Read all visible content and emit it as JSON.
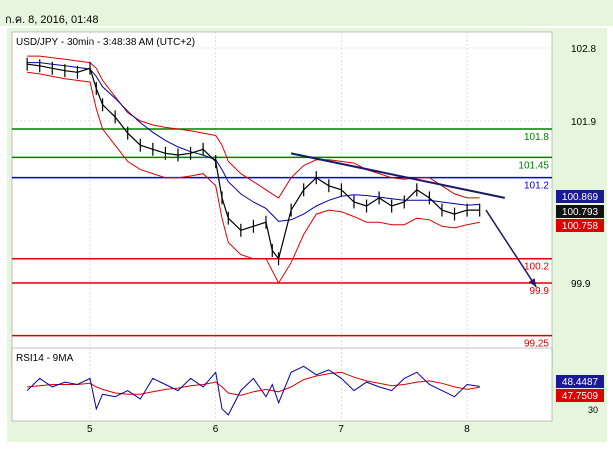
{
  "header": {
    "date_text": "ก.ค. 8, 2016, 01:48"
  },
  "chart_data": [
    {
      "type": "line",
      "title": "USD/JPY - 30min - 3:48:38 AM (UTC+2)",
      "instrument": "USD/JPY",
      "timeframe": "30min",
      "x_tick_labels": [
        "5",
        "6",
        "7",
        "8"
      ],
      "y_tick_labels": [
        "102.8",
        "101.9",
        "99.9"
      ],
      "ylim": [
        99.0,
        103.0
      ],
      "price_series": {
        "name": "",
        "x_day": [
          4.5,
          4.6,
          4.7,
          4.8,
          4.9,
          5.0,
          5.05,
          5.1,
          5.2,
          5.3,
          5.4,
          5.5,
          5.6,
          5.7,
          5.8,
          5.9,
          6.0,
          6.05,
          6.1,
          6.2,
          6.3,
          6.4,
          6.45,
          6.5,
          6.6,
          6.7,
          6.8,
          6.9,
          7.0,
          7.1,
          7.2,
          7.3,
          7.4,
          7.5,
          7.6,
          7.7,
          7.8,
          7.9,
          8.0,
          8.1
        ],
        "y": [
          102.6,
          102.58,
          102.55,
          102.52,
          102.5,
          102.55,
          102.3,
          102.1,
          101.95,
          101.75,
          101.6,
          101.55,
          101.5,
          101.48,
          101.5,
          101.55,
          101.4,
          100.95,
          100.7,
          100.55,
          100.6,
          100.65,
          100.3,
          100.2,
          100.8,
          101.05,
          101.2,
          101.1,
          101.05,
          100.9,
          100.85,
          100.95,
          100.85,
          100.9,
          101.05,
          100.95,
          100.8,
          100.75,
          100.8,
          100.8
        ]
      },
      "bollinger_upper": [
        102.7,
        102.7,
        102.68,
        102.66,
        102.64,
        102.62,
        102.55,
        102.4,
        102.2,
        102.0,
        101.9,
        101.85,
        101.82,
        101.8,
        101.78,
        101.75,
        101.72,
        101.6,
        101.4,
        101.25,
        101.15,
        101.05,
        101.0,
        100.95,
        101.2,
        101.35,
        101.42,
        101.42,
        101.4,
        101.38,
        101.3,
        101.25,
        101.2,
        101.18,
        101.2,
        101.2,
        101.1,
        101.0,
        100.95,
        100.95
      ],
      "bollinger_lower": [
        102.5,
        102.48,
        102.45,
        102.42,
        102.4,
        102.38,
        102.05,
        101.8,
        101.6,
        101.4,
        101.3,
        101.25,
        101.2,
        101.2,
        101.22,
        101.25,
        101.1,
        100.7,
        100.4,
        100.25,
        100.2,
        100.2,
        100.05,
        99.9,
        100.15,
        100.5,
        100.75,
        100.8,
        100.78,
        100.72,
        100.65,
        100.65,
        100.62,
        100.62,
        100.7,
        100.68,
        100.6,
        100.58,
        100.62,
        100.65
      ],
      "moving_average": [
        102.62,
        102.62,
        102.6,
        102.58,
        102.56,
        102.54,
        102.45,
        102.32,
        102.18,
        102.02,
        101.88,
        101.76,
        101.66,
        101.58,
        101.52,
        101.48,
        101.42,
        101.3,
        101.15,
        101.0,
        100.9,
        100.82,
        100.74,
        100.66,
        100.68,
        100.75,
        100.85,
        100.92,
        100.97,
        100.99,
        100.98,
        100.96,
        100.94,
        100.92,
        100.92,
        100.92,
        100.9,
        100.88,
        100.86,
        100.87
      ],
      "horizontal_levels": [
        {
          "value": 101.8,
          "label": "101.8",
          "color": "#008000"
        },
        {
          "value": 101.45,
          "label": "101.45",
          "color": "#008000"
        },
        {
          "value": 101.2,
          "label": "101.2",
          "color": "#0000cc"
        },
        {
          "value": 100.2,
          "label": "100.2",
          "color": "#dd0000"
        },
        {
          "value": 99.9,
          "label": "99.9",
          "color": "#dd0000"
        },
        {
          "value": 99.25,
          "label": "99.25",
          "color": "#dd0000"
        }
      ],
      "trendline": {
        "x_day": [
          6.6,
          8.3
        ],
        "y": [
          101.5,
          100.95
        ],
        "color": "#1a1a66"
      },
      "projection_arrow": {
        "x_day": [
          8.15,
          8.55
        ],
        "y": [
          100.8,
          99.85
        ],
        "color": "#1a1a66"
      },
      "price_tags": [
        {
          "value": 100.869,
          "label": "100.869",
          "bg": "#1a1a99",
          "fg": "#ffffff"
        },
        {
          "value": 100.793,
          "label": "100.793",
          "bg": "#111111",
          "fg": "#ffffff"
        },
        {
          "value": 100.758,
          "label": "100.758",
          "bg": "#dd0000",
          "fg": "#ffffff"
        }
      ]
    },
    {
      "type": "line",
      "title": "RSI14 - 9MA",
      "y_tick_labels": [
        "30"
      ],
      "ylim": [
        20,
        80
      ],
      "rsi_series": {
        "name": "",
        "x_day": [
          4.5,
          4.6,
          4.7,
          4.8,
          4.9,
          5.0,
          5.05,
          5.1,
          5.2,
          5.3,
          5.4,
          5.5,
          5.6,
          5.7,
          5.8,
          5.9,
          6.0,
          6.05,
          6.1,
          6.2,
          6.3,
          6.4,
          6.45,
          6.5,
          6.6,
          6.7,
          6.8,
          6.9,
          7.0,
          7.1,
          7.2,
          7.3,
          7.4,
          7.5,
          7.6,
          7.7,
          7.8,
          7.9,
          8.0,
          8.1
        ],
        "y": [
          45,
          55,
          48,
          52,
          50,
          55,
          30,
          42,
          40,
          45,
          38,
          55,
          50,
          45,
          55,
          48,
          60,
          30,
          25,
          45,
          55,
          40,
          50,
          35,
          60,
          65,
          58,
          62,
          55,
          45,
          52,
          48,
          45,
          55,
          60,
          50,
          45,
          40,
          50,
          48.4487
        ]
      },
      "rsi_ma": [
        48,
        49,
        50,
        50,
        50,
        51,
        48,
        46,
        43,
        42,
        42,
        44,
        46,
        47,
        49,
        50,
        52,
        48,
        43,
        41,
        44,
        46,
        45,
        44,
        48,
        54,
        57,
        59,
        60,
        56,
        53,
        51,
        49,
        50,
        52,
        53,
        51,
        48,
        46,
        47.7509
      ],
      "value_tags": [
        {
          "value": 48.4487,
          "label": "48.4487",
          "bg": "#1a1a99",
          "fg": "#ffffff"
        },
        {
          "value": 47.7509,
          "label": "47.7509",
          "bg": "#dd0000",
          "fg": "#ffffff"
        }
      ]
    }
  ],
  "colors": {
    "bollinger": "#dd0000",
    "moving_average": "#0000aa",
    "price": "#000000",
    "frame": "#e6f5de",
    "grid": "#cccccc"
  }
}
